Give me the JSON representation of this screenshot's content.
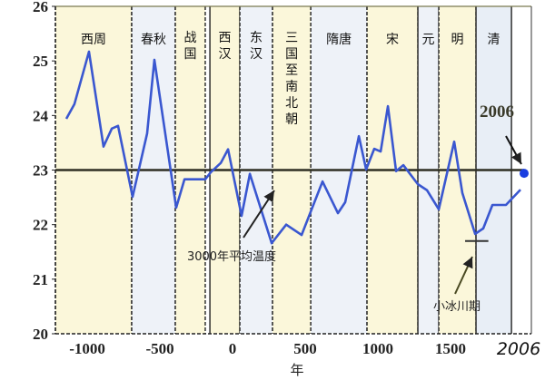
{
  "chart_data": {
    "type": "line",
    "title": "",
    "xlabel": "年",
    "ylabel": "",
    "xlim": [
      -1219,
      2056
    ],
    "ylim": [
      20,
      26
    ],
    "y_ticks": [
      20,
      21,
      22,
      23,
      24,
      25,
      26
    ],
    "x_ticks": [
      -1000,
      -500,
      0,
      500,
      1000,
      1500
    ],
    "x_ticks_extra": {
      "value": 2006,
      "label": "2006"
    },
    "grid": false,
    "series": [
      {
        "color": "#3a57d0",
        "x": [
          -1144,
          -1088,
          -988,
          -888,
          -831,
          -788,
          -688,
          -588,
          -538,
          -388,
          -331,
          -188,
          -150,
          -81,
          -31,
          62,
          119,
          269,
          369,
          475,
          619,
          725,
          775,
          869,
          919,
          975,
          1019,
          1069,
          1125,
          1175,
          1275,
          1338,
          1419,
          1525,
          1581,
          1669,
          1725,
          1788,
          1881,
          1981
        ],
        "y": [
          23.94,
          24.21,
          25.17,
          23.43,
          23.76,
          23.81,
          22.51,
          23.67,
          25.02,
          22.31,
          22.83,
          22.83,
          22.96,
          23.13,
          23.38,
          22.16,
          22.93,
          21.66,
          22.0,
          21.81,
          22.79,
          22.21,
          22.41,
          23.62,
          23.01,
          23.39,
          23.34,
          24.17,
          22.98,
          23.09,
          22.74,
          22.63,
          22.28,
          23.52,
          22.58,
          21.83,
          21.93,
          22.36,
          22.36,
          22.64
        ]
      }
    ],
    "point_2006": {
      "x": 2006,
      "y": 22.94,
      "label": "2006",
      "color": "#1a3ee0"
    },
    "mean_line": {
      "y": 23,
      "label": "3000年平均温度",
      "color": "#2e2e22"
    },
    "little_ice_age": {
      "label": "小冰川期",
      "x": [
        1600,
        1760
      ],
      "y": 21.7
    },
    "periods": [
      {
        "name": "西周",
        "start": -1219,
        "end": -694,
        "fill": "#fbf7da",
        "style": "dashed",
        "vertical": false
      },
      {
        "name": "春秋",
        "start": -694,
        "end": -394,
        "fill": "#eef2f8",
        "style": "dashed",
        "vertical": false
      },
      {
        "name": "战国",
        "start": -394,
        "end": -188,
        "fill": "#fbf7da",
        "style": "dashed",
        "vertical": true
      },
      {
        "name": "西汉",
        "start": -156,
        "end": 50,
        "fill": "#fbf7da",
        "style": "solid",
        "vertical": true
      },
      {
        "name": "东汉",
        "start": 50,
        "end": 275,
        "fill": "#eef2f8",
        "style": "dashed",
        "vertical": true
      },
      {
        "name": "三国至南北朝",
        "start": 275,
        "end": 538,
        "fill": "#fbf7da",
        "style": "dashed",
        "vertical": true
      },
      {
        "name": "隋唐",
        "start": 538,
        "end": 925,
        "fill": "#eef2f8",
        "style": "dashed",
        "vertical": false
      },
      {
        "name": "宋",
        "start": 925,
        "end": 1275,
        "fill": "#fbf7da",
        "style": "dashed",
        "vertical": false
      },
      {
        "name": "元",
        "start": 1275,
        "end": 1419,
        "fill": "#eef2f8",
        "style": "solid",
        "vertical": false
      },
      {
        "name": "明",
        "start": 1419,
        "end": 1675,
        "fill": "#fbf7da",
        "style": "dashed",
        "vertical": false
      },
      {
        "name": "清",
        "start": 1675,
        "end": 1919,
        "fill": "#e8eef6",
        "style": "solid",
        "vertical": false
      }
    ]
  }
}
